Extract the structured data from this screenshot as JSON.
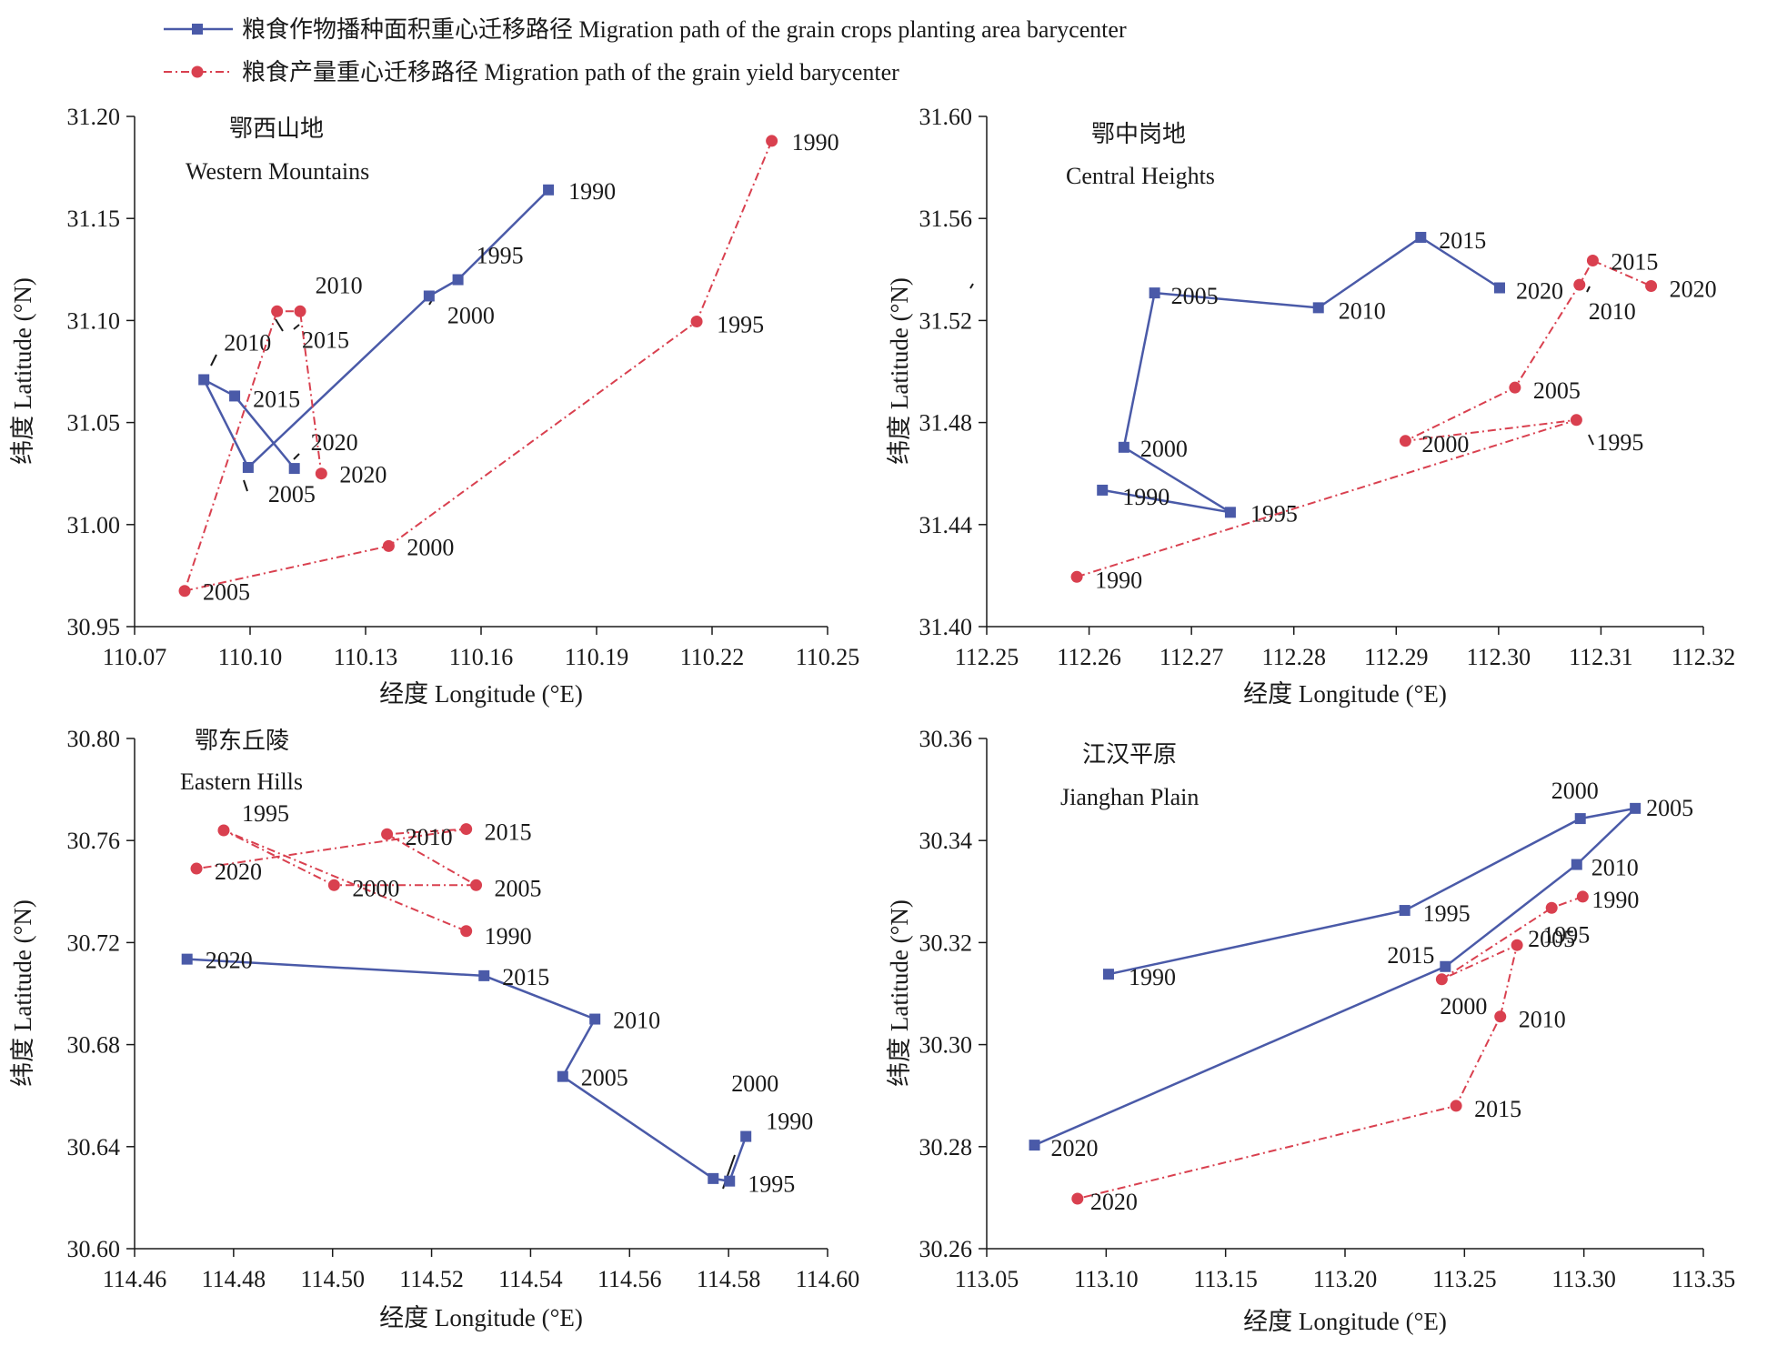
{
  "legend": {
    "area": "粮食作物播种面积重心迁移路径 Migration path of the grain crops planting area barycenter",
    "yield": "粮食产量重心迁移路径 Migration path of the grain yield barycenter"
  },
  "colors": {
    "area": "#4a5aa8",
    "yield": "#d9404f",
    "axis": "#1a1a1a"
  },
  "chart_data": [
    {
      "type": "line",
      "title_cn": "鄂西山地",
      "title_en": "Western Mountains",
      "xlabel": "经度 Longitude (°E)",
      "ylabel": "纬度 Latitude (°N)",
      "xlim": [
        110.07,
        110.25
      ],
      "ylim": [
        30.95,
        31.2
      ],
      "xticks": [
        "110.07",
        "110.10",
        "110.13",
        "110.16",
        "110.19",
        "110.22",
        "110.25"
      ],
      "yticks": [
        "30.95",
        "31.00",
        "31.05",
        "31.10",
        "31.15",
        "31.20"
      ],
      "series": [
        {
          "name": "粮食作物播种面积重心迁移路径 Migration path of the grain crops planting area barycenter",
          "key": "area",
          "marker": "square",
          "points": [
            {
              "label": "1990",
              "x": 110.1775,
              "y": 31.164
            },
            {
              "label": "1995",
              "x": 110.154,
              "y": 31.12
            },
            {
              "label": "2000",
              "x": 110.1465,
              "y": 31.112
            },
            {
              "label": "2005",
              "x": 110.0995,
              "y": 31.028
            },
            {
              "label": "2010",
              "x": 110.088,
              "y": 31.071
            },
            {
              "label": "2015",
              "x": 110.096,
              "y": 31.063
            },
            {
              "label": "2020",
              "x": 110.1115,
              "y": 31.0275
            }
          ]
        },
        {
          "name": "粮食产量重心迁移路径 Migration path of the grain yield barycenter",
          "key": "yield",
          "marker": "circle",
          "points": [
            {
              "label": "1990",
              "x": 110.2355,
              "y": 31.188
            },
            {
              "label": "1995",
              "x": 110.216,
              "y": 31.0995
            },
            {
              "label": "2000",
              "x": 110.136,
              "y": 30.9895
            },
            {
              "label": "2005",
              "x": 110.083,
              "y": 30.9675
            },
            {
              "label": "2010",
              "x": 110.107,
              "y": 31.1045
            },
            {
              "label": "2015",
              "x": 110.113,
              "y": 31.1045
            },
            {
              "label": "2020",
              "x": 110.1185,
              "y": 31.025
            }
          ]
        }
      ]
    },
    {
      "type": "line",
      "title_cn": "鄂中岗地",
      "title_en": "Central Heights",
      "xlabel": "经度 Longitude (°E)",
      "ylabel": "纬度 Latitude (°N)",
      "xlim": [
        112.25,
        112.32
      ],
      "ylim": [
        31.4,
        31.6
      ],
      "xticks": [
        "112.25",
        "112.26",
        "112.27",
        "112.28",
        "112.29",
        "112.30",
        "112.31",
        "112.32"
      ],
      "yticks": [
        "31.40",
        "31.44",
        "31.48",
        "31.52",
        "31.56",
        "31.60"
      ],
      "series": [
        {
          "name": "粮食作物播种面积重心迁移路径 Migration path of the grain crops planting area barycenter",
          "key": "area",
          "marker": "square",
          "points": [
            {
              "label": "1990",
              "x": 112.2613,
              "y": 31.4535
            },
            {
              "label": "1995",
              "x": 112.2738,
              "y": 31.4448
            },
            {
              "label": "2000",
              "x": 112.2634,
              "y": 31.4703
            },
            {
              "label": "2005",
              "x": 112.2664,
              "y": 31.5308
            },
            {
              "label": "2010",
              "x": 112.2824,
              "y": 31.525
            },
            {
              "label": "2015",
              "x": 112.2924,
              "y": 31.5526
            },
            {
              "label": "2020",
              "x": 112.3001,
              "y": 31.5328
            }
          ]
        },
        {
          "name": "粮食产量重心迁移路径 Migration path of the grain yield barycenter",
          "key": "yield",
          "marker": "circle",
          "points": [
            {
              "label": "1990",
              "x": 112.2588,
              "y": 31.4195
            },
            {
              "label": "1995",
              "x": 112.3076,
              "y": 31.481
            },
            {
              "label": "2000",
              "x": 112.2909,
              "y": 31.4728
            },
            {
              "label": "2005",
              "x": 112.3016,
              "y": 31.4937
            },
            {
              "label": "2010",
              "x": 112.3079,
              "y": 31.534
            },
            {
              "label": "2015",
              "x": 112.3092,
              "y": 31.5435
            },
            {
              "label": "2020",
              "x": 112.3149,
              "y": 31.5335
            }
          ]
        }
      ]
    },
    {
      "type": "line",
      "title_cn": "鄂东丘陵",
      "title_en": "Eastern Hills",
      "xlabel": "经度 Longitude (°E)",
      "ylabel": "纬度 Latitude (°N)",
      "xlim": [
        114.46,
        114.6
      ],
      "ylim": [
        30.6,
        30.8
      ],
      "xticks": [
        "114.46",
        "114.48",
        "114.50",
        "114.52",
        "114.54",
        "114.56",
        "114.58",
        "114.60"
      ],
      "yticks": [
        "30.60",
        "30.64",
        "30.68",
        "30.72",
        "30.76",
        "30.80"
      ],
      "series": [
        {
          "name": "粮食作物播种面积重心迁移路径 Migration path of the grain crops planting area barycenter",
          "key": "area",
          "marker": "square",
          "points": [
            {
              "label": "1990",
              "x": 114.5835,
              "y": 30.644
            },
            {
              "label": "1995",
              "x": 114.5802,
              "y": 30.6265
            },
            {
              "label": "2000",
              "x": 114.5769,
              "y": 30.6275
            },
            {
              "label": "2005",
              "x": 114.5465,
              "y": 30.6675
            },
            {
              "label": "2010",
              "x": 114.553,
              "y": 30.69
            },
            {
              "label": "2015",
              "x": 114.5306,
              "y": 30.707
            },
            {
              "label": "2020",
              "x": 114.4706,
              "y": 30.7135
            }
          ]
        },
        {
          "name": "粮食产量重心迁移路径 Migration path of the grain yield barycenter",
          "key": "yield",
          "marker": "circle",
          "points": [
            {
              "label": "1990",
              "x": 114.527,
              "y": 30.7245
            },
            {
              "label": "1995",
              "x": 114.478,
              "y": 30.764
            },
            {
              "label": "2000",
              "x": 114.5003,
              "y": 30.7425
            },
            {
              "label": "2005",
              "x": 114.529,
              "y": 30.7425
            },
            {
              "label": "2010",
              "x": 114.511,
              "y": 30.7625
            },
            {
              "label": "2015",
              "x": 114.527,
              "y": 30.7645
            },
            {
              "label": "2020",
              "x": 114.4725,
              "y": 30.749
            }
          ]
        }
      ]
    },
    {
      "type": "line",
      "title_cn": "江汉平原",
      "title_en": "Jianghan Plain",
      "xlabel": "经度 Longitude (°E)",
      "ylabel": "纬度 Latitude (°N)",
      "xlim": [
        113.05,
        113.35
      ],
      "ylim": [
        30.26,
        30.36
      ],
      "xticks": [
        "113.05",
        "113.10",
        "113.15",
        "113.20",
        "113.25",
        "113.30",
        "113.35"
      ],
      "yticks": [
        "30.26",
        "30.28",
        "30.30",
        "30.32",
        "30.34",
        "30.36"
      ],
      "series": [
        {
          "name": "粮食作物播种面积重心迁移路径 Migration path of the grain crops planting area barycenter",
          "key": "area",
          "marker": "square",
          "points": [
            {
              "label": "1990",
              "x": 113.101,
              "y": 30.3138
            },
            {
              "label": "1995",
              "x": 113.225,
              "y": 30.3263
            },
            {
              "label": "2000",
              "x": 113.2985,
              "y": 30.3443
            },
            {
              "label": "2005",
              "x": 113.3215,
              "y": 30.3463
            },
            {
              "label": "2010",
              "x": 113.297,
              "y": 30.3353
            },
            {
              "label": "2015",
              "x": 113.242,
              "y": 30.3153
            },
            {
              "label": "2020",
              "x": 113.07,
              "y": 30.2803
            }
          ]
        },
        {
          "name": "粮食产量重心迁移路径 Migration path of the grain yield barycenter",
          "key": "yield",
          "marker": "circle",
          "points": [
            {
              "label": "1990",
              "x": 113.2995,
              "y": 30.329
            },
            {
              "label": "1995",
              "x": 113.2865,
              "y": 30.3268
            },
            {
              "label": "2000",
              "x": 113.2405,
              "y": 30.3128
            },
            {
              "label": "2005",
              "x": 113.272,
              "y": 30.3195
            },
            {
              "label": "2010",
              "x": 113.265,
              "y": 30.3055
            },
            {
              "label": "2015",
              "x": 113.2465,
              "y": 30.288
            },
            {
              "label": "2020",
              "x": 113.088,
              "y": 30.2698
            }
          ]
        }
      ]
    }
  ]
}
